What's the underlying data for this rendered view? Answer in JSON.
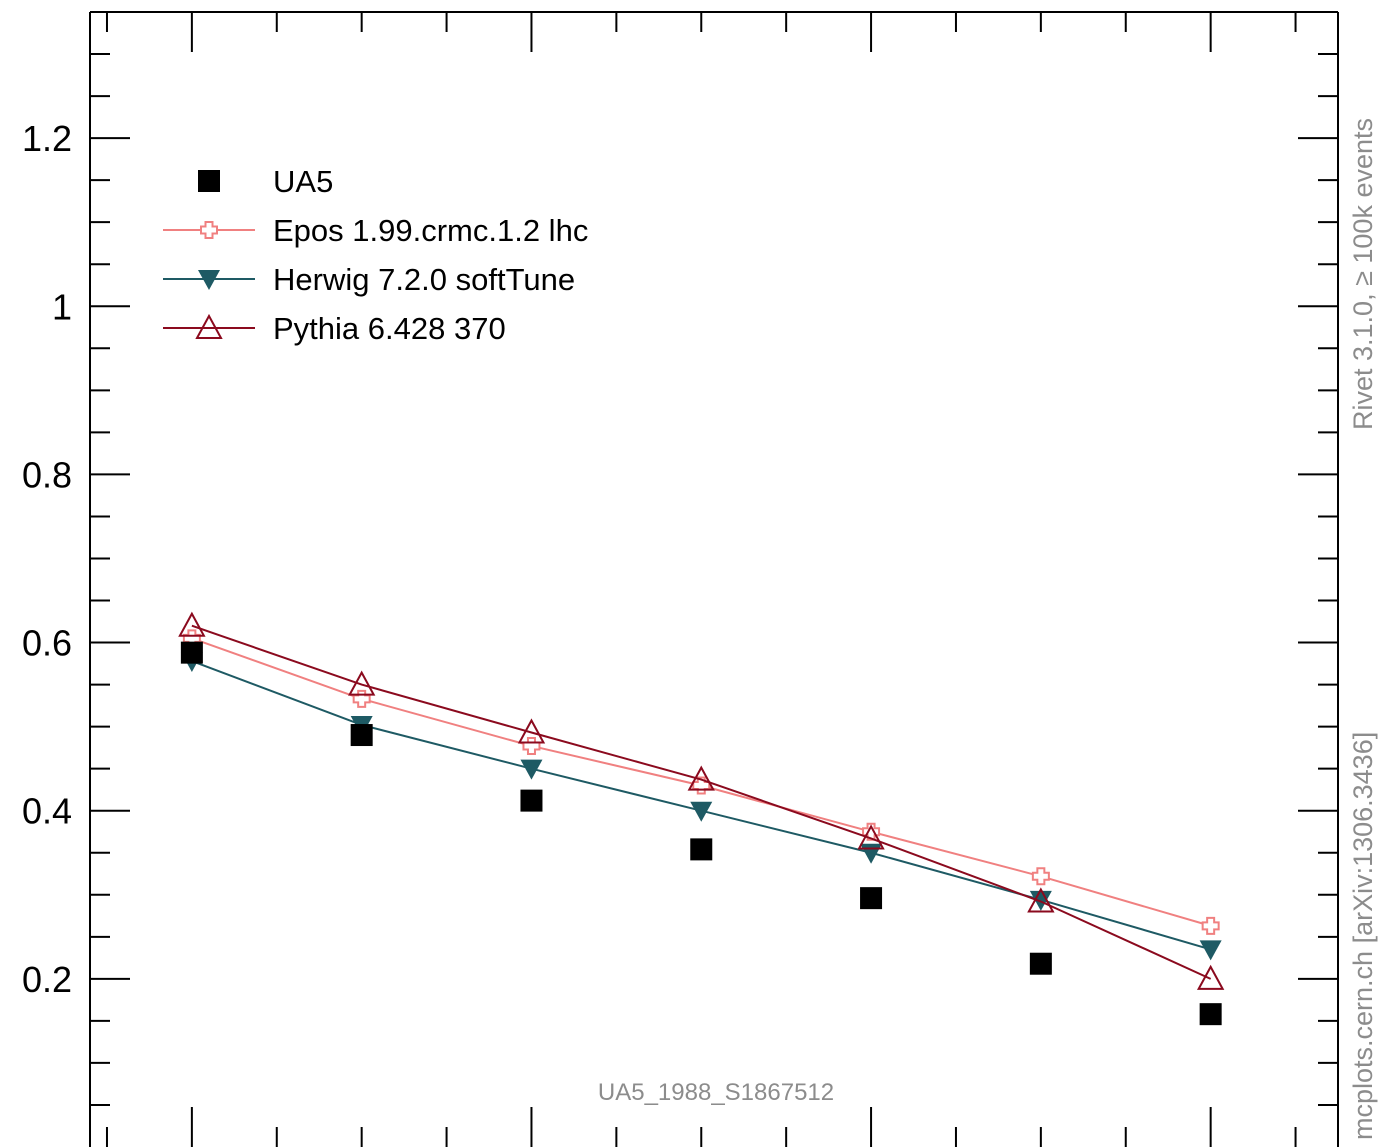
{
  "chart_data": {
    "type": "line",
    "title": "",
    "xlabel": "",
    "ylabel": "",
    "x": [
      1,
      2,
      3,
      4,
      5,
      6,
      7
    ],
    "xlim": [
      0.4,
      7.75
    ],
    "ylim": [
      0,
      1.35
    ],
    "yticks": [
      0.2,
      0.4,
      0.6,
      0.8,
      1,
      1.2
    ],
    "ytick_labels": [
      "0.2",
      "0.4",
      "0.6",
      "0.8",
      "1",
      "1.2"
    ],
    "grid": false,
    "legend_position": "top-left",
    "series": [
      {
        "name": "UA5",
        "style": "markers",
        "marker": "square",
        "color": "#000000",
        "values": [
          0.588,
          0.49,
          0.412,
          0.354,
          0.296,
          0.218,
          0.158
        ]
      },
      {
        "name": "Epos 1.99.crmc.1.2 lhc",
        "style": "line",
        "marker": "cross-open",
        "color": "#f08080",
        "values": [
          0.605,
          0.533,
          0.477,
          0.43,
          0.375,
          0.322,
          0.263
        ]
      },
      {
        "name": "Herwig 7.2.0 softTune",
        "style": "line",
        "marker": "triangle-down",
        "color": "#1e5a64",
        "values": [
          0.578,
          0.502,
          0.45,
          0.4,
          0.35,
          0.294,
          0.235
        ]
      },
      {
        "name": "Pythia 6.428 370",
        "style": "line",
        "marker": "triangle-up-open",
        "color": "#8b0a1e",
        "values": [
          0.62,
          0.55,
          0.493,
          0.437,
          0.367,
          0.292,
          0.2
        ]
      }
    ],
    "annotations": {
      "watermark": "UA5_1988_S1867512",
      "side_top": "Rivet 3.1.0, ≥ 100k events",
      "side_bottom": "mcplots.cern.ch [arXiv:1306.3436]"
    }
  }
}
